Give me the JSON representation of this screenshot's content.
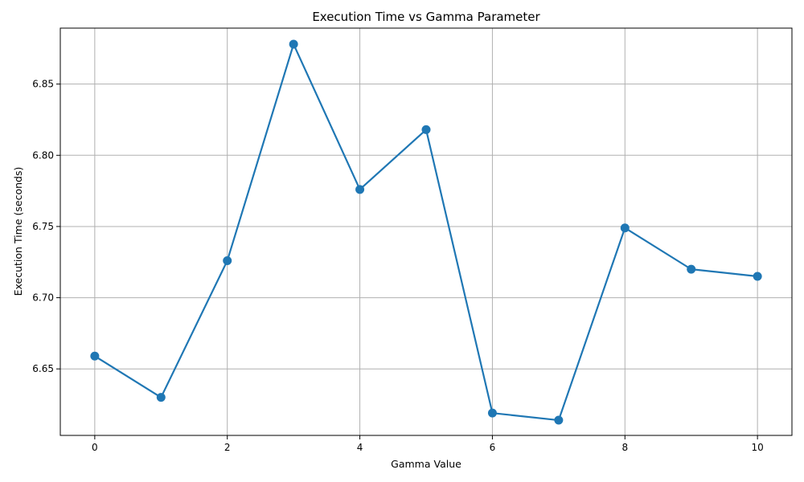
{
  "chart_data": {
    "type": "line",
    "title": "Execution Time vs Gamma Parameter",
    "xlabel": "Gamma Value",
    "ylabel": "Execution Time (seconds)",
    "x": [
      0,
      1,
      2,
      3,
      4,
      5,
      6,
      7,
      8,
      9,
      10
    ],
    "series": [
      {
        "values": [
          6.659,
          6.63,
          6.726,
          6.878,
          6.776,
          6.818,
          6.619,
          6.614,
          6.749,
          6.72,
          6.715
        ],
        "color": "#1f77b4"
      }
    ],
    "xlim": [
      -0.52,
      10.52
    ],
    "ylim": [
      6.6033,
      6.8893
    ],
    "xticks": [
      0,
      2,
      4,
      6,
      8,
      10
    ],
    "yticks": [
      6.65,
      6.7,
      6.75,
      6.8,
      6.85
    ],
    "xtick_labels": [
      "0",
      "2",
      "4",
      "6",
      "8",
      "10"
    ],
    "ytick_labels": [
      "6.65",
      "6.70",
      "6.75",
      "6.80",
      "6.85"
    ],
    "grid": true,
    "marker": "circle"
  }
}
